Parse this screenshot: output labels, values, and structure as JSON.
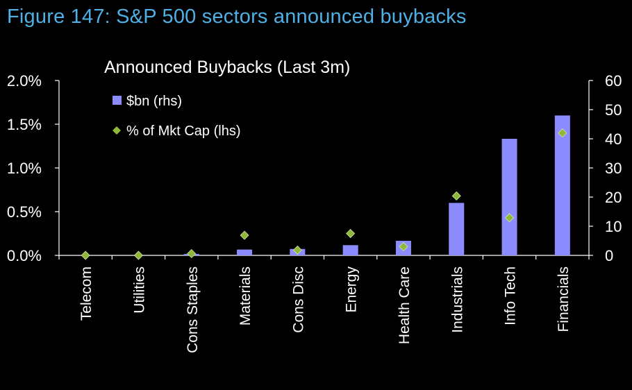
{
  "figure_title": "Figure 147: S&P 500 sectors announced buybacks",
  "colors": {
    "background": "#000000",
    "title": "#4fb0e6",
    "bar": "#8c8cff",
    "marker": "#8fb83a",
    "text": "#ffffff"
  },
  "chart_data": {
    "type": "bar",
    "title": "Announced Buybacks (Last 3m)",
    "categories": [
      "Telecom",
      "Utilities",
      "Cons Staples",
      "Materials",
      "Cons Disc",
      "Energy",
      "Health Care",
      "Industrials",
      "Info Tech",
      "Financials"
    ],
    "series": [
      {
        "name": "$bn (rhs)",
        "type": "bar",
        "axis": "right",
        "values": [
          0,
          0,
          0.5,
          2,
          2.2,
          3.5,
          5,
          18,
          40,
          48
        ]
      },
      {
        "name": "% of Mkt Cap (lhs)",
        "type": "scatter",
        "marker": "diamond",
        "axis": "left",
        "values": [
          0.0,
          0.0,
          0.02,
          0.23,
          0.06,
          0.25,
          0.1,
          0.68,
          0.43,
          1.4
        ]
      }
    ],
    "y_left": {
      "range": [
        0,
        2.0
      ],
      "ticks": [
        0,
        0.5,
        1.0,
        1.5,
        2.0
      ],
      "tick_labels": [
        "0.0%",
        "0.5%",
        "1.0%",
        "1.5%",
        "2.0%"
      ]
    },
    "y_right": {
      "range": [
        0,
        60
      ],
      "ticks": [
        0,
        10,
        20,
        30,
        40,
        50,
        60
      ],
      "tick_labels": [
        "0",
        "10",
        "20",
        "30",
        "40",
        "50",
        "60"
      ]
    },
    "grid": false,
    "legend_position": "top-left"
  }
}
